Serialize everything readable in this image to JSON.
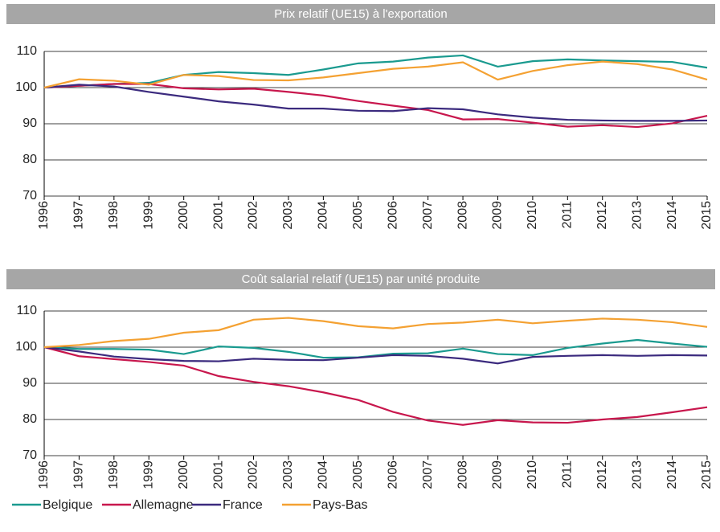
{
  "chart_data": [
    {
      "type": "line",
      "title": "Prix relatif (UE15) à l'exportation",
      "categories": [
        "1996",
        "1997",
        "1998",
        "1999",
        "2000",
        "2001",
        "2002",
        "2003",
        "2004",
        "2005",
        "2006",
        "2007",
        "2008",
        "2009",
        "2010",
        "2011",
        "2012",
        "2013",
        "2014",
        "2015"
      ],
      "ylim": [
        70,
        110
      ],
      "yticks": [
        70,
        80,
        90,
        100,
        110
      ],
      "grid": true,
      "series": [
        {
          "color": "#1a9a8f",
          "values": [
            100,
            100.5,
            101,
            101.3,
            103.5,
            104.3,
            104,
            103.5,
            105,
            106.7,
            107.2,
            108.3,
            108.9,
            105.8,
            107.3,
            107.8,
            107.5,
            107.3,
            107.1,
            105.5
          ]
        },
        {
          "color": "#c8174d",
          "values": [
            100,
            100.5,
            101,
            101,
            99.8,
            99.5,
            99.7,
            98.8,
            97.8,
            96.3,
            95,
            93.8,
            91.2,
            91.3,
            90.3,
            89.2,
            89.6,
            89.1,
            90.1,
            92.2
          ]
        },
        {
          "color": "#3b2a7e",
          "values": [
            100,
            100.8,
            100.3,
            98.8,
            97.5,
            96.2,
            95.3,
            94.2,
            94.2,
            93.6,
            93.5,
            94.3,
            94,
            92.6,
            91.7,
            91.1,
            90.9,
            90.8,
            90.8,
            90.9
          ]
        },
        {
          "color": "#f4a132",
          "values": [
            100,
            102.3,
            101.9,
            100.8,
            103.5,
            103.2,
            102.1,
            102,
            102.8,
            104,
            105.2,
            105.8,
            107,
            102.2,
            104.6,
            106.2,
            107.2,
            106.5,
            105,
            102.2
          ]
        }
      ]
    },
    {
      "type": "line",
      "title": "Coût salarial relatif (UE15) par unité produite",
      "categories": [
        "1996",
        "1997",
        "1998",
        "1999",
        "2000",
        "2001",
        "2002",
        "2003",
        "2004",
        "2005",
        "2006",
        "2007",
        "2008",
        "2009",
        "2010",
        "2011",
        "2012",
        "2013",
        "2014",
        "2015"
      ],
      "ylim": [
        70,
        110
      ],
      "yticks": [
        70,
        80,
        90,
        100,
        110
      ],
      "grid": true,
      "series": [
        {
          "name": "Belgique",
          "color": "#1a9a8f",
          "values": [
            100,
            99.5,
            99.5,
            99.3,
            98.1,
            100.2,
            99.8,
            98.7,
            97.1,
            97.2,
            98.2,
            98.3,
            99.6,
            98.1,
            97.8,
            99.8,
            101,
            102,
            101,
            100.1
          ]
        },
        {
          "name": "Allemagne",
          "color": "#c8174d",
          "values": [
            100,
            97.5,
            96.7,
            95.9,
            94.9,
            92,
            90.4,
            89.2,
            87.5,
            85.4,
            82.1,
            79.7,
            78.5,
            79.8,
            79.2,
            79.1,
            80,
            80.7,
            82,
            83.4
          ]
        },
        {
          "name": "France",
          "color": "#3b2a7e",
          "values": [
            100,
            98.8,
            97.4,
            96.7,
            96.2,
            96.1,
            96.8,
            96.5,
            96.4,
            97.1,
            97.8,
            97.6,
            96.8,
            95.5,
            97.3,
            97.6,
            97.8,
            97.6,
            97.8,
            97.7
          ]
        },
        {
          "name": "Pays-Bas",
          "color": "#f4a132",
          "values": [
            100,
            100.6,
            101.7,
            102.3,
            104,
            104.7,
            107.6,
            108.1,
            107.2,
            105.8,
            105.2,
            106.4,
            106.8,
            107.6,
            106.6,
            107.3,
            107.9,
            107.6,
            106.9,
            105.6
          ]
        }
      ]
    }
  ]
}
